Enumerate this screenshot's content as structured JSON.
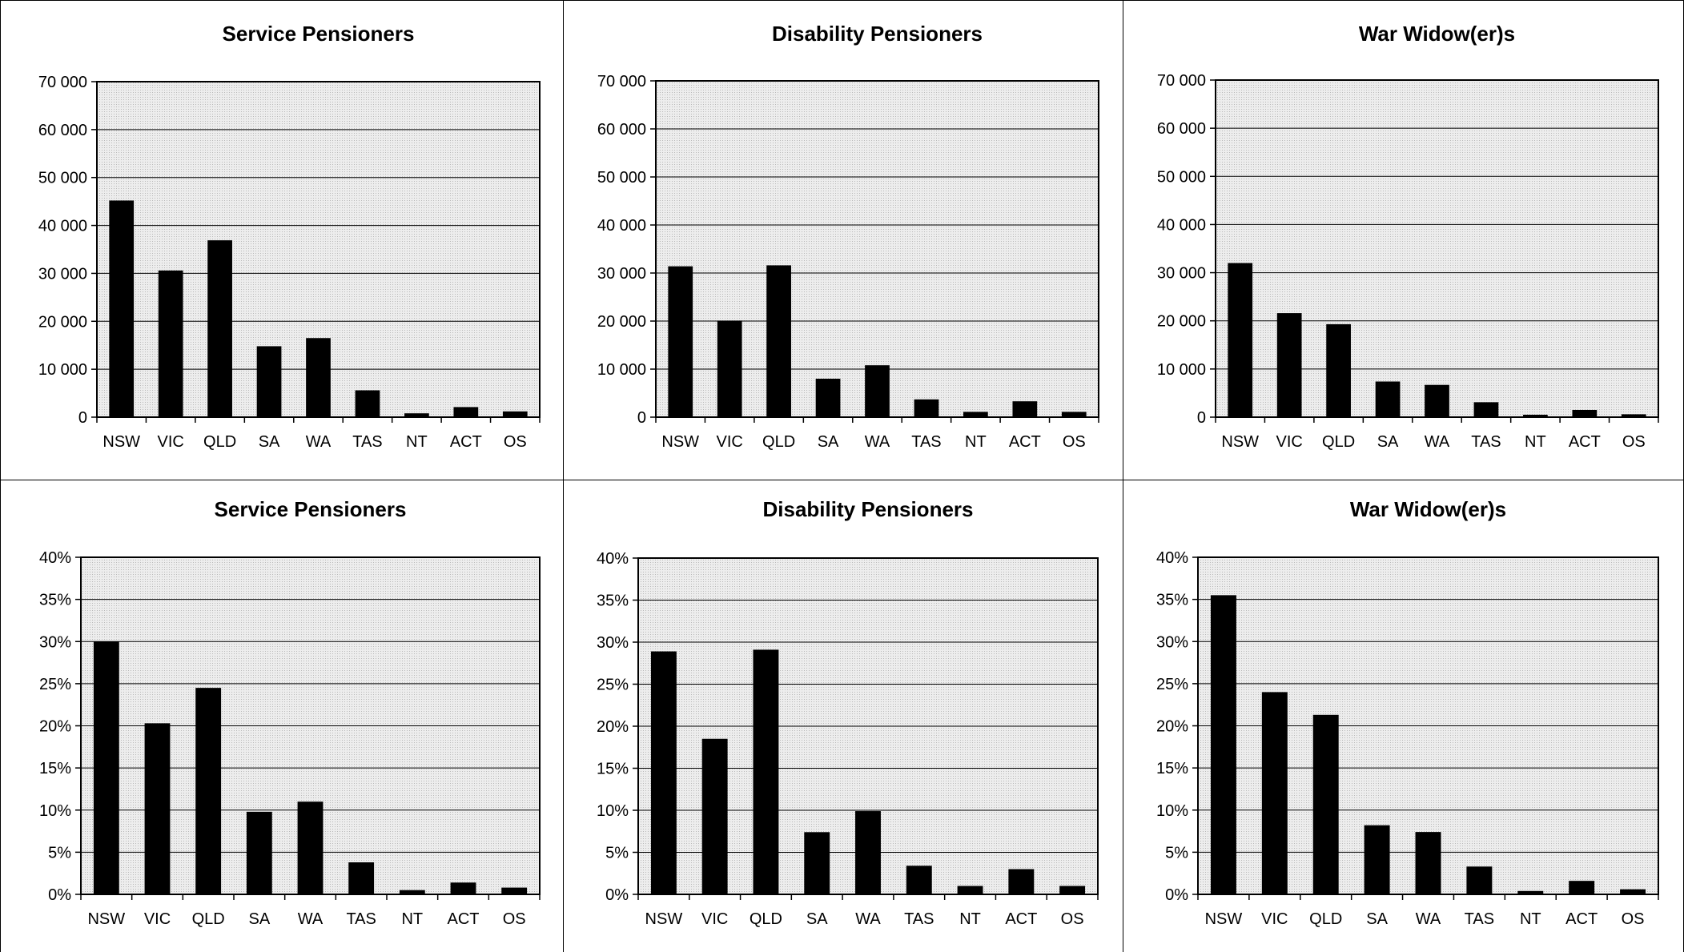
{
  "chart_data": [
    {
      "type": "bar",
      "title": "Service Pensioners",
      "categories": [
        "NSW",
        "VIC",
        "QLD",
        "SA",
        "WA",
        "TAS",
        "NT",
        "ACT",
        "OS"
      ],
      "values": [
        45200,
        30600,
        36900,
        14800,
        16500,
        5600,
        800,
        2100,
        1200
      ],
      "ylim": [
        0,
        70000
      ],
      "yticks": [
        0,
        10000,
        20000,
        30000,
        40000,
        50000,
        60000,
        70000
      ],
      "ytick_labels": [
        "0",
        "10 000",
        "20 000",
        "30 000",
        "40 000",
        "50 000",
        "60 000",
        "70 000"
      ],
      "grid": true,
      "colors": {
        "bar": "#000000",
        "plot_bg": "#e6e6e6"
      }
    },
    {
      "type": "bar",
      "title": "Disability Pensioners",
      "categories": [
        "NSW",
        "VIC",
        "QLD",
        "SA",
        "WA",
        "TAS",
        "NT",
        "ACT",
        "OS"
      ],
      "values": [
        31400,
        20100,
        31600,
        8000,
        10800,
        3700,
        1100,
        3300,
        1100
      ],
      "ylim": [
        0,
        70000
      ],
      "yticks": [
        0,
        10000,
        20000,
        30000,
        40000,
        50000,
        60000,
        70000
      ],
      "ytick_labels": [
        "0",
        "10 000",
        "20 000",
        "30 000",
        "40 000",
        "50 000",
        "60 000",
        "70 000"
      ],
      "grid": true,
      "colors": {
        "bar": "#000000",
        "plot_bg": "#e6e6e6"
      }
    },
    {
      "type": "bar",
      "title": "War Widow(er)s",
      "categories": [
        "NSW",
        "VIC",
        "QLD",
        "SA",
        "WA",
        "TAS",
        "NT",
        "ACT",
        "OS"
      ],
      "values": [
        32000,
        21600,
        19300,
        7400,
        6700,
        3100,
        500,
        1500,
        600
      ],
      "ylim": [
        0,
        70000
      ],
      "yticks": [
        0,
        10000,
        20000,
        30000,
        40000,
        50000,
        60000,
        70000
      ],
      "ytick_labels": [
        "0",
        "10 000",
        "20 000",
        "30 000",
        "40 000",
        "50 000",
        "60 000",
        "70 000"
      ],
      "grid": true,
      "colors": {
        "bar": "#000000",
        "plot_bg": "#e6e6e6"
      }
    },
    {
      "type": "bar",
      "title": "Service Pensioners",
      "categories": [
        "NSW",
        "VIC",
        "QLD",
        "SA",
        "WA",
        "TAS",
        "NT",
        "ACT",
        "OS"
      ],
      "values": [
        0.3,
        0.203,
        0.245,
        0.098,
        0.11,
        0.038,
        0.005,
        0.014,
        0.008
      ],
      "ylim": [
        0,
        0.4
      ],
      "yticks": [
        0,
        0.05,
        0.1,
        0.15,
        0.2,
        0.25,
        0.3,
        0.35,
        0.4
      ],
      "ytick_labels": [
        "0%",
        "5%",
        "10%",
        "15%",
        "20%",
        "25%",
        "30%",
        "35%",
        "40%"
      ],
      "grid": true,
      "colors": {
        "bar": "#000000",
        "plot_bg": "#e6e6e6"
      }
    },
    {
      "type": "bar",
      "title": "Disability Pensioners",
      "categories": [
        "NSW",
        "VIC",
        "QLD",
        "SA",
        "WA",
        "TAS",
        "NT",
        "ACT",
        "OS"
      ],
      "values": [
        0.289,
        0.185,
        0.291,
        0.074,
        0.099,
        0.034,
        0.01,
        0.03,
        0.01
      ],
      "ylim": [
        0,
        0.4
      ],
      "yticks": [
        0,
        0.05,
        0.1,
        0.15,
        0.2,
        0.25,
        0.3,
        0.35,
        0.4
      ],
      "ytick_labels": [
        "0%",
        "5%",
        "10%",
        "15%",
        "20%",
        "25%",
        "30%",
        "35%",
        "40%"
      ],
      "grid": true,
      "colors": {
        "bar": "#000000",
        "plot_bg": "#e6e6e6"
      }
    },
    {
      "type": "bar",
      "title": "War Widow(er)s",
      "categories": [
        "NSW",
        "VIC",
        "QLD",
        "SA",
        "WA",
        "TAS",
        "NT",
        "ACT",
        "OS"
      ],
      "values": [
        0.355,
        0.24,
        0.213,
        0.082,
        0.074,
        0.033,
        0.004,
        0.016,
        0.006
      ],
      "ylim": [
        0,
        0.4
      ],
      "yticks": [
        0,
        0.05,
        0.1,
        0.15,
        0.2,
        0.25,
        0.3,
        0.35,
        0.4
      ],
      "ytick_labels": [
        "0%",
        "5%",
        "10%",
        "15%",
        "20%",
        "25%",
        "30%",
        "35%",
        "40%"
      ],
      "grid": true,
      "colors": {
        "bar": "#000000",
        "plot_bg": "#e6e6e6"
      }
    }
  ]
}
